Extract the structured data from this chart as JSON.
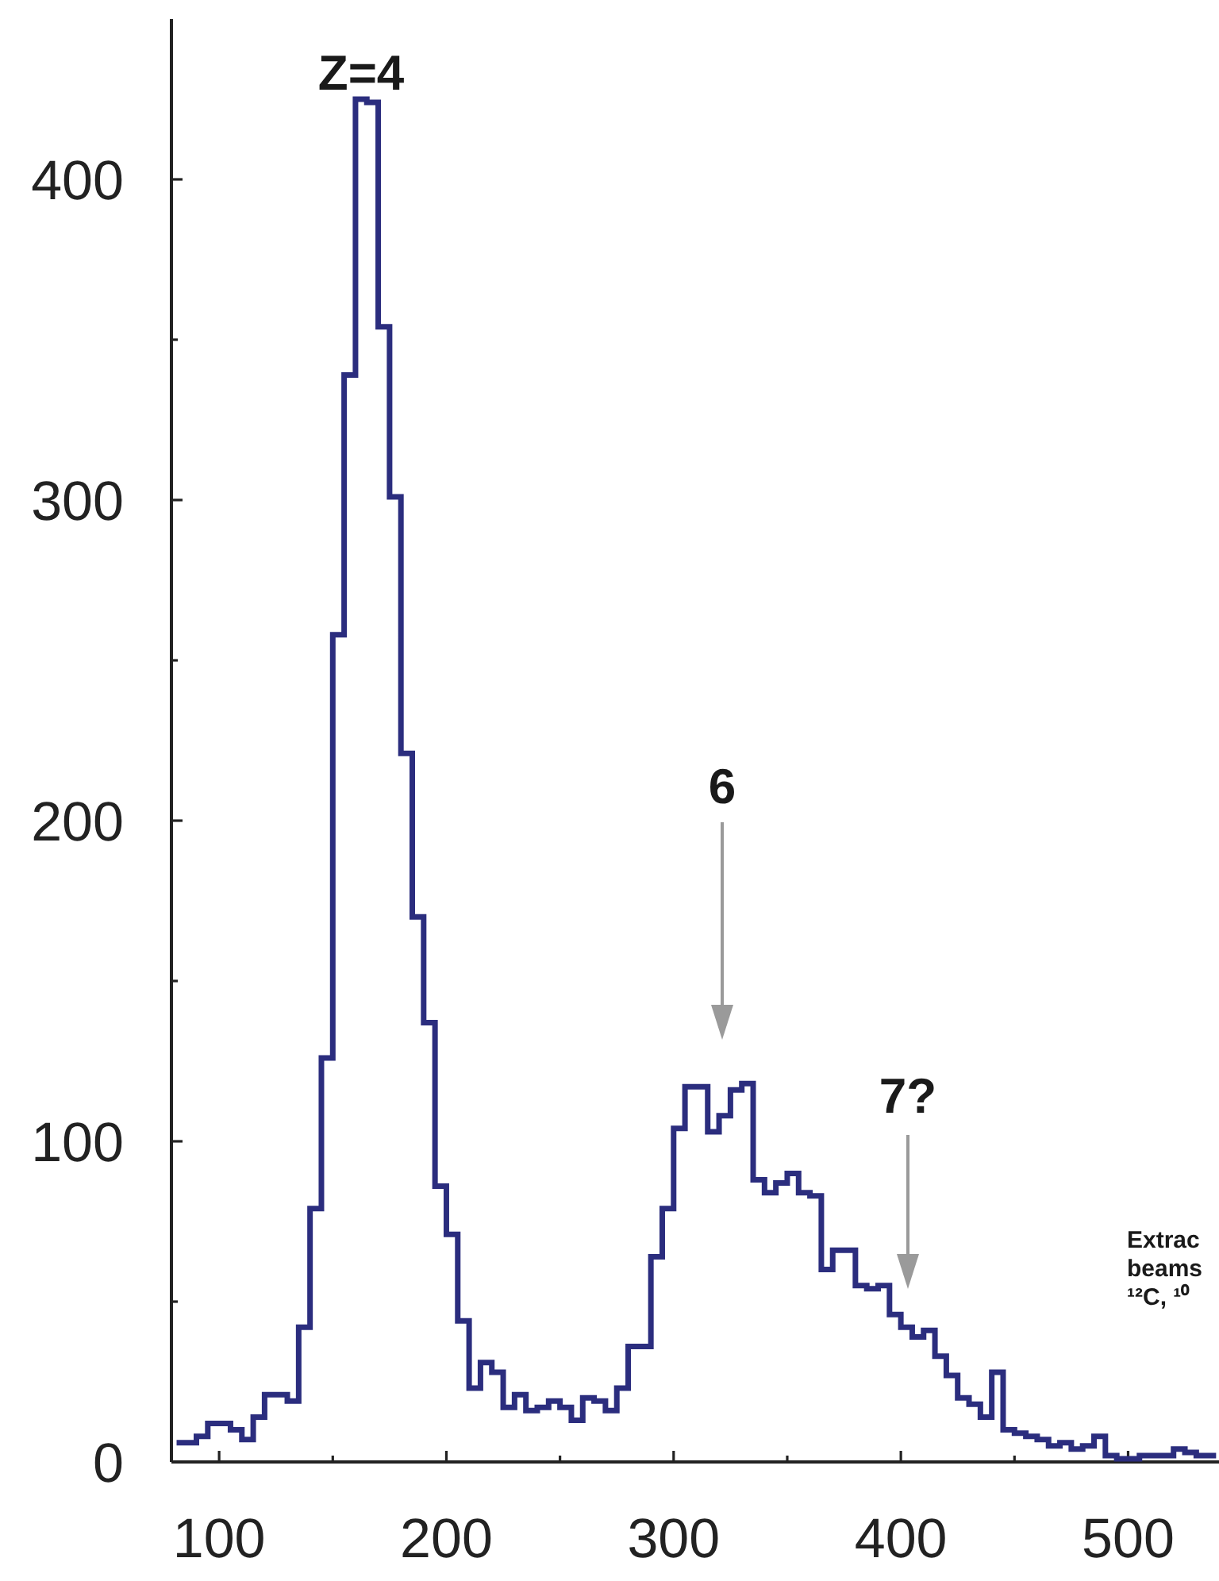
{
  "chart_data": {
    "type": "step",
    "x": [
      82.5,
      87.5,
      92.5,
      97.5,
      102.5,
      107.5,
      112.5,
      117.5,
      122.5,
      127.5,
      132.5,
      137.5,
      142.5,
      147.5,
      152.5,
      157.5,
      162.5,
      167.5,
      172.5,
      177.5,
      182.5,
      187.5,
      192.5,
      197.5,
      202.5,
      207.5,
      212.5,
      217.5,
      222.5,
      227.5,
      232.5,
      237.5,
      242.5,
      247.5,
      252.5,
      257.5,
      262.5,
      267.5,
      272.5,
      277.5,
      282.5,
      287.5,
      292.5,
      297.5,
      302.5,
      307.5,
      312.5,
      317.5,
      322.5,
      327.5,
      332.5,
      337.5,
      342.5,
      347.5,
      352.5,
      357.5,
      362.5,
      367.5,
      372.5,
      377.5,
      382.5,
      387.5,
      392.5,
      397.5,
      402.5,
      407.5,
      412.5,
      417.5,
      422.5,
      427.5,
      432.5,
      437.5,
      442.5,
      447.5,
      452.5,
      457.5,
      462.5,
      467.5,
      472.5,
      477.5,
      482.5,
      487.5,
      492.5,
      497.5,
      502.5,
      507.5,
      512.5,
      517.5,
      522.5,
      527.5,
      532.5,
      537.5
    ],
    "values": [
      6,
      6,
      8,
      12,
      12,
      10,
      7,
      14,
      21,
      21,
      19,
      42,
      79,
      126,
      258,
      339,
      425,
      424,
      354,
      301,
      221,
      170,
      137,
      86,
      71,
      44,
      23,
      31,
      28,
      17,
      21,
      16,
      17,
      19,
      17,
      13,
      20,
      19,
      16,
      23,
      36,
      36,
      64,
      79,
      104,
      117,
      117,
      103,
      108,
      116,
      118,
      88,
      84,
      87,
      90,
      84,
      83,
      60,
      66,
      66,
      55,
      54,
      55,
      46,
      42,
      39,
      41,
      33,
      27,
      20,
      18,
      14,
      28,
      10,
      9,
      8,
      7,
      5,
      6,
      4,
      5,
      8,
      2,
      1,
      1,
      2,
      2,
      2,
      4,
      3,
      2,
      2
    ],
    "color": "#2b2d7e",
    "xlim": [
      79,
      540
    ],
    "ylim": [
      0,
      450
    ],
    "xticks": [
      100,
      {
        "value": 150,
        "label": null
      },
      200,
      {
        "value": 250,
        "label": null
      },
      300,
      {
        "value": 350,
        "label": null
      },
      400,
      {
        "value": 450,
        "label": null
      },
      500
    ],
    "yticks": [
      0,
      {
        "value": 50,
        "label": null
      },
      100,
      {
        "value": 150,
        "label": null
      },
      200,
      {
        "value": 250,
        "label": null
      },
      300,
      {
        "value": 350,
        "label": null
      },
      400
    ],
    "annotations": [
      {
        "text": "Z=4",
        "x": 162.5,
        "y": 425
      },
      "6",
      "7?",
      "Extrac\nbeams\n¹²C, ¹⁰"
    ]
  }
}
